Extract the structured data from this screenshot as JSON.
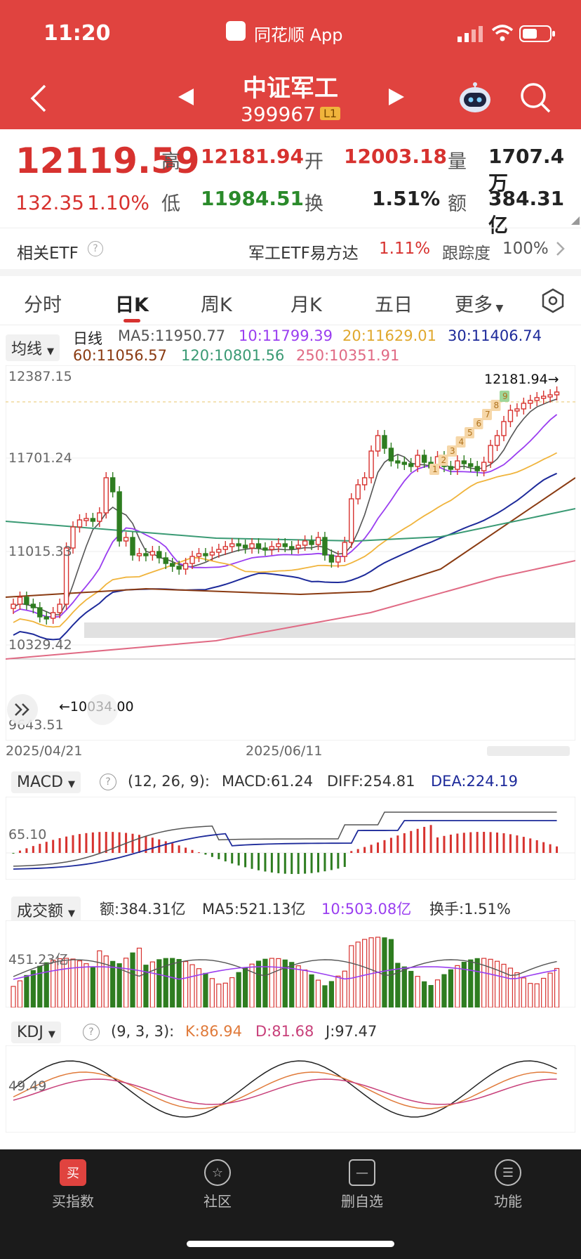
{
  "status": {
    "time": "11:20",
    "app_name": "同花顺 App"
  },
  "header": {
    "title": "中证军工",
    "code": "399967",
    "code_badge": "L1"
  },
  "quote": {
    "price": "12119.59",
    "change": "132.35",
    "change_pct": "1.10%",
    "high_label": "高",
    "high": "12181.94",
    "open_label": "开",
    "open": "12003.18",
    "volume_label": "量",
    "volume": "1707.4万",
    "low_label": "低",
    "low": "11984.51",
    "turnover_label": "换",
    "turnover": "1.51%",
    "amount_label": "额",
    "amount": "384.31亿"
  },
  "etf": {
    "label": "相关ETF",
    "name": "军工ETF易方达",
    "pct": "1.11%",
    "track_label": "跟踪度",
    "track_value": "100%"
  },
  "tabs": [
    "分时",
    "日K",
    "周K",
    "月K",
    "五日",
    "更多"
  ],
  "ma_legend": {
    "selector": "均线",
    "line_label": "日线",
    "ma5": "MA5:11950.77",
    "ma10": "10:11799.39",
    "ma20": "20:11629.01",
    "ma30": "30:11406.74",
    "ma60": "60:11056.57",
    "ma120": "120:10801.56",
    "ma250": "250:10351.91"
  },
  "colors": {
    "up": "#d7322f",
    "down": "#2e7d20",
    "ma5": "#555555",
    "ma10": "#9a3ef0",
    "ma20": "#f0b43c",
    "ma30": "#1d2a9a",
    "ma60": "#8a3b12",
    "ma120": "#3a9a74",
    "ma250": "#e06a84"
  },
  "kline": {
    "y_labels": [
      "12387.15",
      "11701.24",
      "11015.33",
      "10329.42",
      "9643.51"
    ],
    "max_marker": "12181.94→",
    "min_marker": "←10034.00",
    "x_labels": [
      "2025/04/21",
      "2025/06/11"
    ],
    "seq_labels": [
      "1",
      "2",
      "3",
      "4",
      "5",
      "6",
      "7",
      "8",
      "9"
    ]
  },
  "macd": {
    "name": "MACD",
    "params": "(12, 26, 9):",
    "macd": "MACD:61.24",
    "diff": "DIFF:254.81",
    "dea": "DEA:224.19",
    "y_label": "65.10"
  },
  "amount_panel": {
    "name": "成交额",
    "amount": "额:384.31亿",
    "ma5": "MA5:521.13亿",
    "ma10": "10:503.08亿",
    "turnover": "换手:1.51%",
    "y_label": "451.23亿"
  },
  "kdj": {
    "name": "KDJ",
    "params": "(9, 3, 3):",
    "k": "K:86.94",
    "d": "D:81.68",
    "j": "J:97.47",
    "y_label": "49.49"
  },
  "bottom_nav": [
    {
      "label": "买指数",
      "icon": "买"
    },
    {
      "label": "社区",
      "icon": "☆"
    },
    {
      "label": "删自选",
      "icon": "—"
    },
    {
      "label": "功能",
      "icon": "☰"
    }
  ]
}
